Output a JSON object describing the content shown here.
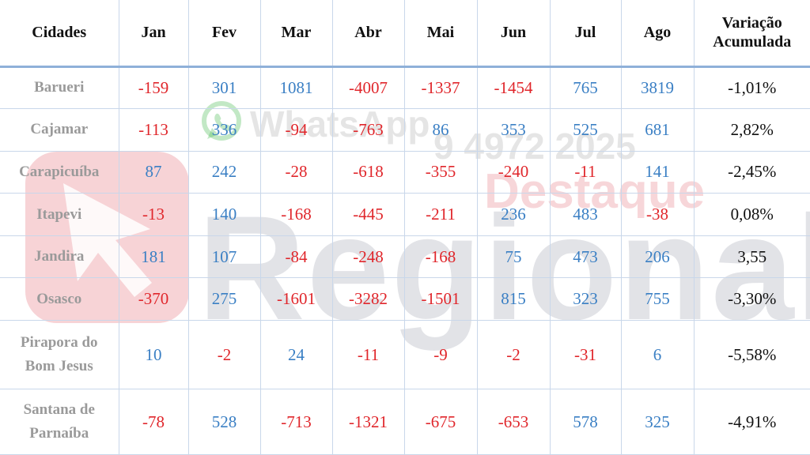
{
  "columns": [
    "Cidades",
    "Jan",
    "Fev",
    "Mar",
    "Abr",
    "Mai",
    "Jun",
    "Jul",
    "Ago",
    "Variação\nAcumulada"
  ],
  "rows": [
    {
      "city": "Barueri",
      "values": [
        "-159",
        "301",
        "1081",
        "-4007",
        "-1337",
        "-1454",
        "765",
        "3819"
      ],
      "variation": "-1,01%"
    },
    {
      "city": "Cajamar",
      "values": [
        "-113",
        "336",
        "-94",
        "-763",
        "86",
        "353",
        "525",
        "681"
      ],
      "variation": "2,82%"
    },
    {
      "city": "Carapicuíba",
      "values": [
        "87",
        "242",
        "-28",
        "-618",
        "-355",
        "-240",
        "-11",
        "141"
      ],
      "variation": "-2,45%"
    },
    {
      "city": "Itapevi",
      "values": [
        "-13",
        "140",
        "-168",
        "-445",
        "-211",
        "236",
        "483",
        "-38"
      ],
      "variation": "0,08%"
    },
    {
      "city": "Jandira",
      "values": [
        "181",
        "107",
        "-84",
        "-248",
        "-168",
        "75",
        "473",
        "206"
      ],
      "variation": "3,55"
    },
    {
      "city": "Osasco",
      "values": [
        "-370",
        "275",
        "-1601",
        "-3282",
        "-1501",
        "815",
        "323",
        "755"
      ],
      "variation": "-3,30%"
    },
    {
      "city": "Pirapora do\nBom Jesus",
      "values": [
        "10",
        "-2",
        "24",
        "-11",
        "-9",
        "-2",
        "-31",
        "6"
      ],
      "variation": "-5,58%"
    },
    {
      "city": "Santana de\nParnaíba",
      "values": [
        "-78",
        "528",
        "-713",
        "-1321",
        "-675",
        "-653",
        "578",
        "325"
      ],
      "variation": "-4,91%"
    }
  ],
  "watermark": {
    "brand": "Regional",
    "tagline": "Destaque",
    "whatsapp_label": "WhatsApp",
    "phone": "9 4972 2025"
  },
  "colors": {
    "positive": "#3a7fc4",
    "negative": "#e0262b",
    "city": "#9a9a9a",
    "grid": "#c9d7ea",
    "header_rule": "#8fb0d9"
  }
}
